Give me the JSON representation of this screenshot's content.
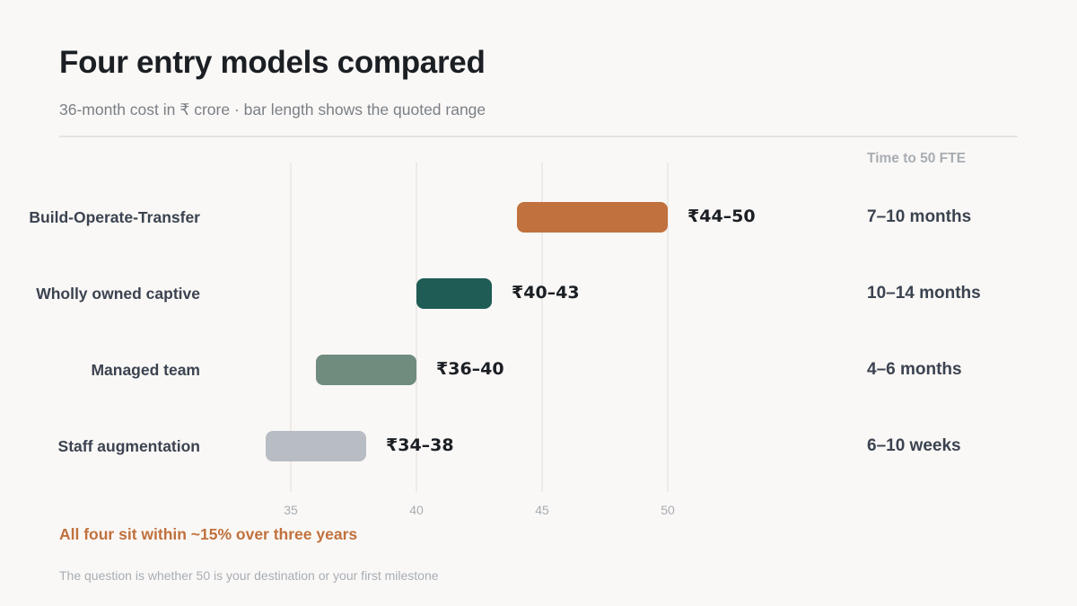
{
  "title": "Four entry models compared",
  "subtitle": "36-month cost in ₹ crore · bar length shows the quoted range",
  "time_header": "Time to 50 FTE",
  "callout": "All four sit within ~15% over three years",
  "footnote": "The question is whether 50 is your destination or your first milestone",
  "chart_data": {
    "type": "bar",
    "orientation": "horizontal-range",
    "title": "Four entry models compared",
    "subtitle": "36-month cost in ₹ crore · bar length shows the quoted range",
    "xlim": [
      30,
      50
    ],
    "xticks": [
      35,
      40,
      45,
      50
    ],
    "grid": true,
    "categories": [
      "Build-Operate-Transfer",
      "Wholly owned captive",
      "Managed team",
      "Staff augmentation"
    ],
    "ranges": [
      [
        44,
        50
      ],
      [
        40,
        43
      ],
      [
        36,
        40
      ],
      [
        34,
        38
      ]
    ],
    "value_labels": [
      "₹44–50",
      "₹40–43",
      "₹36–40",
      "₹34–38"
    ],
    "time_to_50_fte": [
      "7–10 months",
      "10–14 months",
      "4–6 months",
      "6–10 weeks"
    ],
    "colors": [
      "#c0713d",
      "#1e5c55",
      "#6f8c7e",
      "#b8bcc3"
    ]
  }
}
